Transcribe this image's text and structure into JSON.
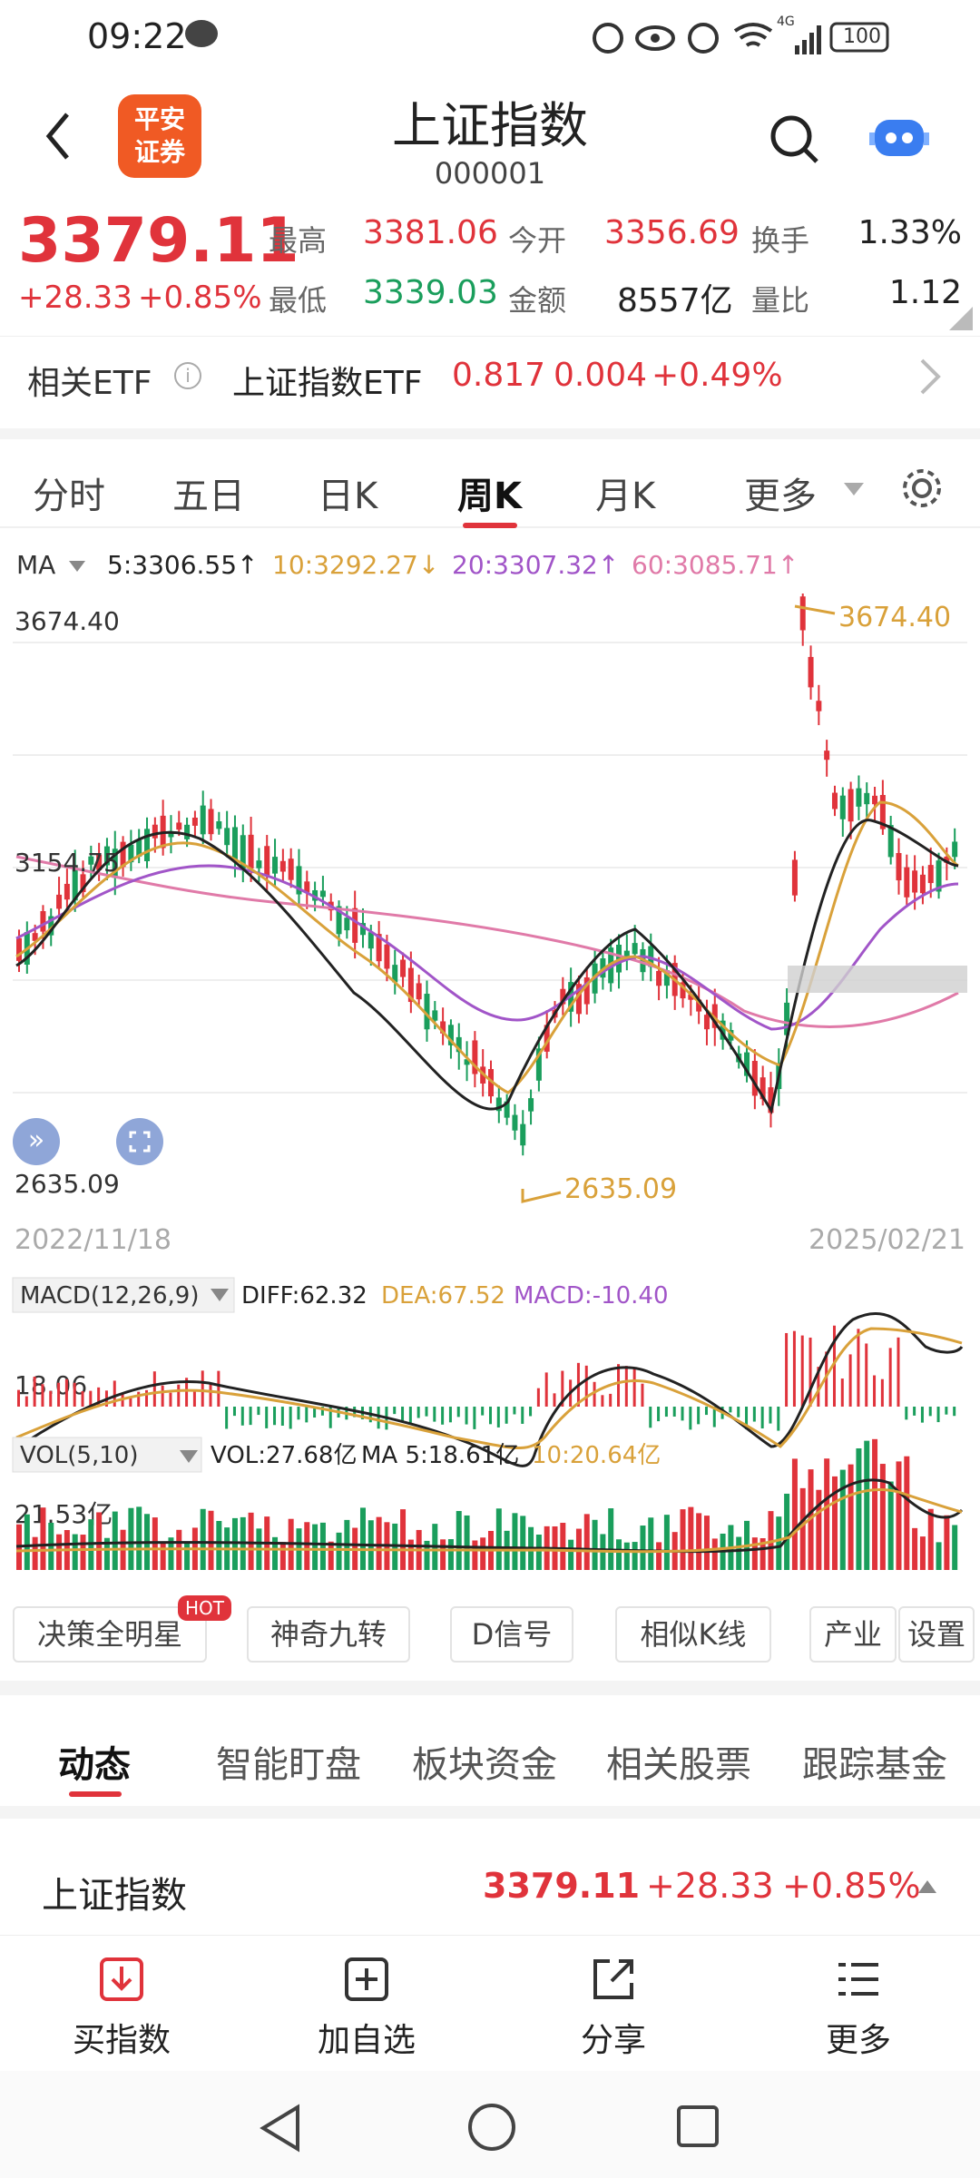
{
  "status": {
    "time": "09:22",
    "battery": "100",
    "network": "4G"
  },
  "header": {
    "title": "上证指数",
    "code": "000001",
    "logo_line1": "平安",
    "logo_line2": "证券"
  },
  "quote": {
    "price": "3379.11",
    "change": "+28.33",
    "change_pct": "+0.85%",
    "high_label": "最高",
    "high": "3381.06",
    "open_label": "今开",
    "open": "3356.69",
    "turnover_label": "换手",
    "turnover": "1.33%",
    "low_label": "最低",
    "low": "3339.03",
    "amount_label": "金额",
    "amount": "8557亿",
    "vr_label": "量比",
    "vr": "1.12"
  },
  "etf": {
    "label": "相关ETF",
    "name": "上证指数ETF",
    "price": "0.817",
    "change": "0.004",
    "pct": "+0.49%"
  },
  "tabs": [
    "分时",
    "五日",
    "日K",
    "周K",
    "月K",
    "更多"
  ],
  "active_tab": "周K",
  "ma_legend": {
    "label": "MA",
    "ma5": "5:3306.55↑",
    "ma10": "10:3292.27↓",
    "ma20": "20:3307.32↑",
    "ma60": "60:3085.71↑"
  },
  "price_axis": {
    "high": "3674.40",
    "mid": "3154.75",
    "low": "2635.09",
    "marker_high": "3674.40",
    "marker_low": "2635.09"
  },
  "date_axis": {
    "start": "2022/11/18",
    "end": "2025/02/21"
  },
  "macd_legend": {
    "label": "MACD(12,26,9)",
    "diff": "DIFF:62.32",
    "dea": "DEA:67.52",
    "macd": "MACD:-10.40",
    "axis": "18.06"
  },
  "vol_legend": {
    "label": "VOL(5,10)",
    "vol": "VOL:27.68亿",
    "ma5": "MA 5:18.61亿",
    "ma10": "10:20.64亿",
    "axis": "21.53亿"
  },
  "tools": [
    "决策全明星",
    "神奇九转",
    "D信号",
    "相似K线",
    "产业",
    "设置"
  ],
  "hot_badge": "HOT",
  "news_tabs": [
    "动态",
    "智能盯盘",
    "板块资金",
    "相关股票",
    "跟踪基金"
  ],
  "summary": {
    "name": "上证指数",
    "price": "3379.11",
    "change": "+28.33",
    "pct": "+0.85%"
  },
  "bottom": [
    "买指数",
    "加自选",
    "分享",
    "更多"
  ],
  "colors": {
    "up": "#e0333b",
    "down": "#1a9e5c",
    "ma5": "#222222",
    "ma10": "#d9a13a",
    "ma20": "#a155c8",
    "ma60": "#e07aa8"
  }
}
